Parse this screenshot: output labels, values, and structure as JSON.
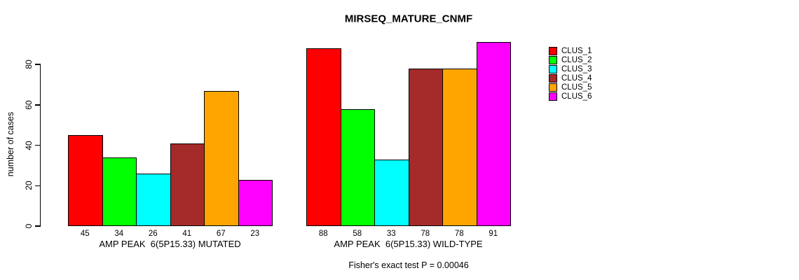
{
  "title": "MIRSEQ_MATURE_CNMF",
  "footer": "Fisher's exact test P = 0.00046",
  "chart_data": {
    "type": "bar",
    "title": "MIRSEQ_MATURE_CNMF",
    "ylabel": "number of cases",
    "xlabel": "",
    "yticks": [
      0,
      20,
      40,
      60,
      80
    ],
    "ylim": [
      0,
      91
    ],
    "grid": false,
    "legend_position": "right",
    "categories": [
      "CLUS_1",
      "CLUS_2",
      "CLUS_3",
      "CLUS_4",
      "CLUS_5",
      "CLUS_6"
    ],
    "colors": [
      "#FF0000",
      "#00FF00",
      "#00FFFF",
      "#A52A2A",
      "#FFA500",
      "#FF00FF"
    ],
    "panels": [
      {
        "label": "AMP PEAK  6(5P15.33) MUTATED",
        "values": [
          45,
          34,
          26,
          41,
          67,
          23
        ]
      },
      {
        "label": "AMP PEAK  6(5P15.33) WILD-TYPE",
        "values": [
          88,
          58,
          33,
          78,
          78,
          91
        ]
      }
    ],
    "annotation": "Fisher's exact test P = 0.00046"
  }
}
